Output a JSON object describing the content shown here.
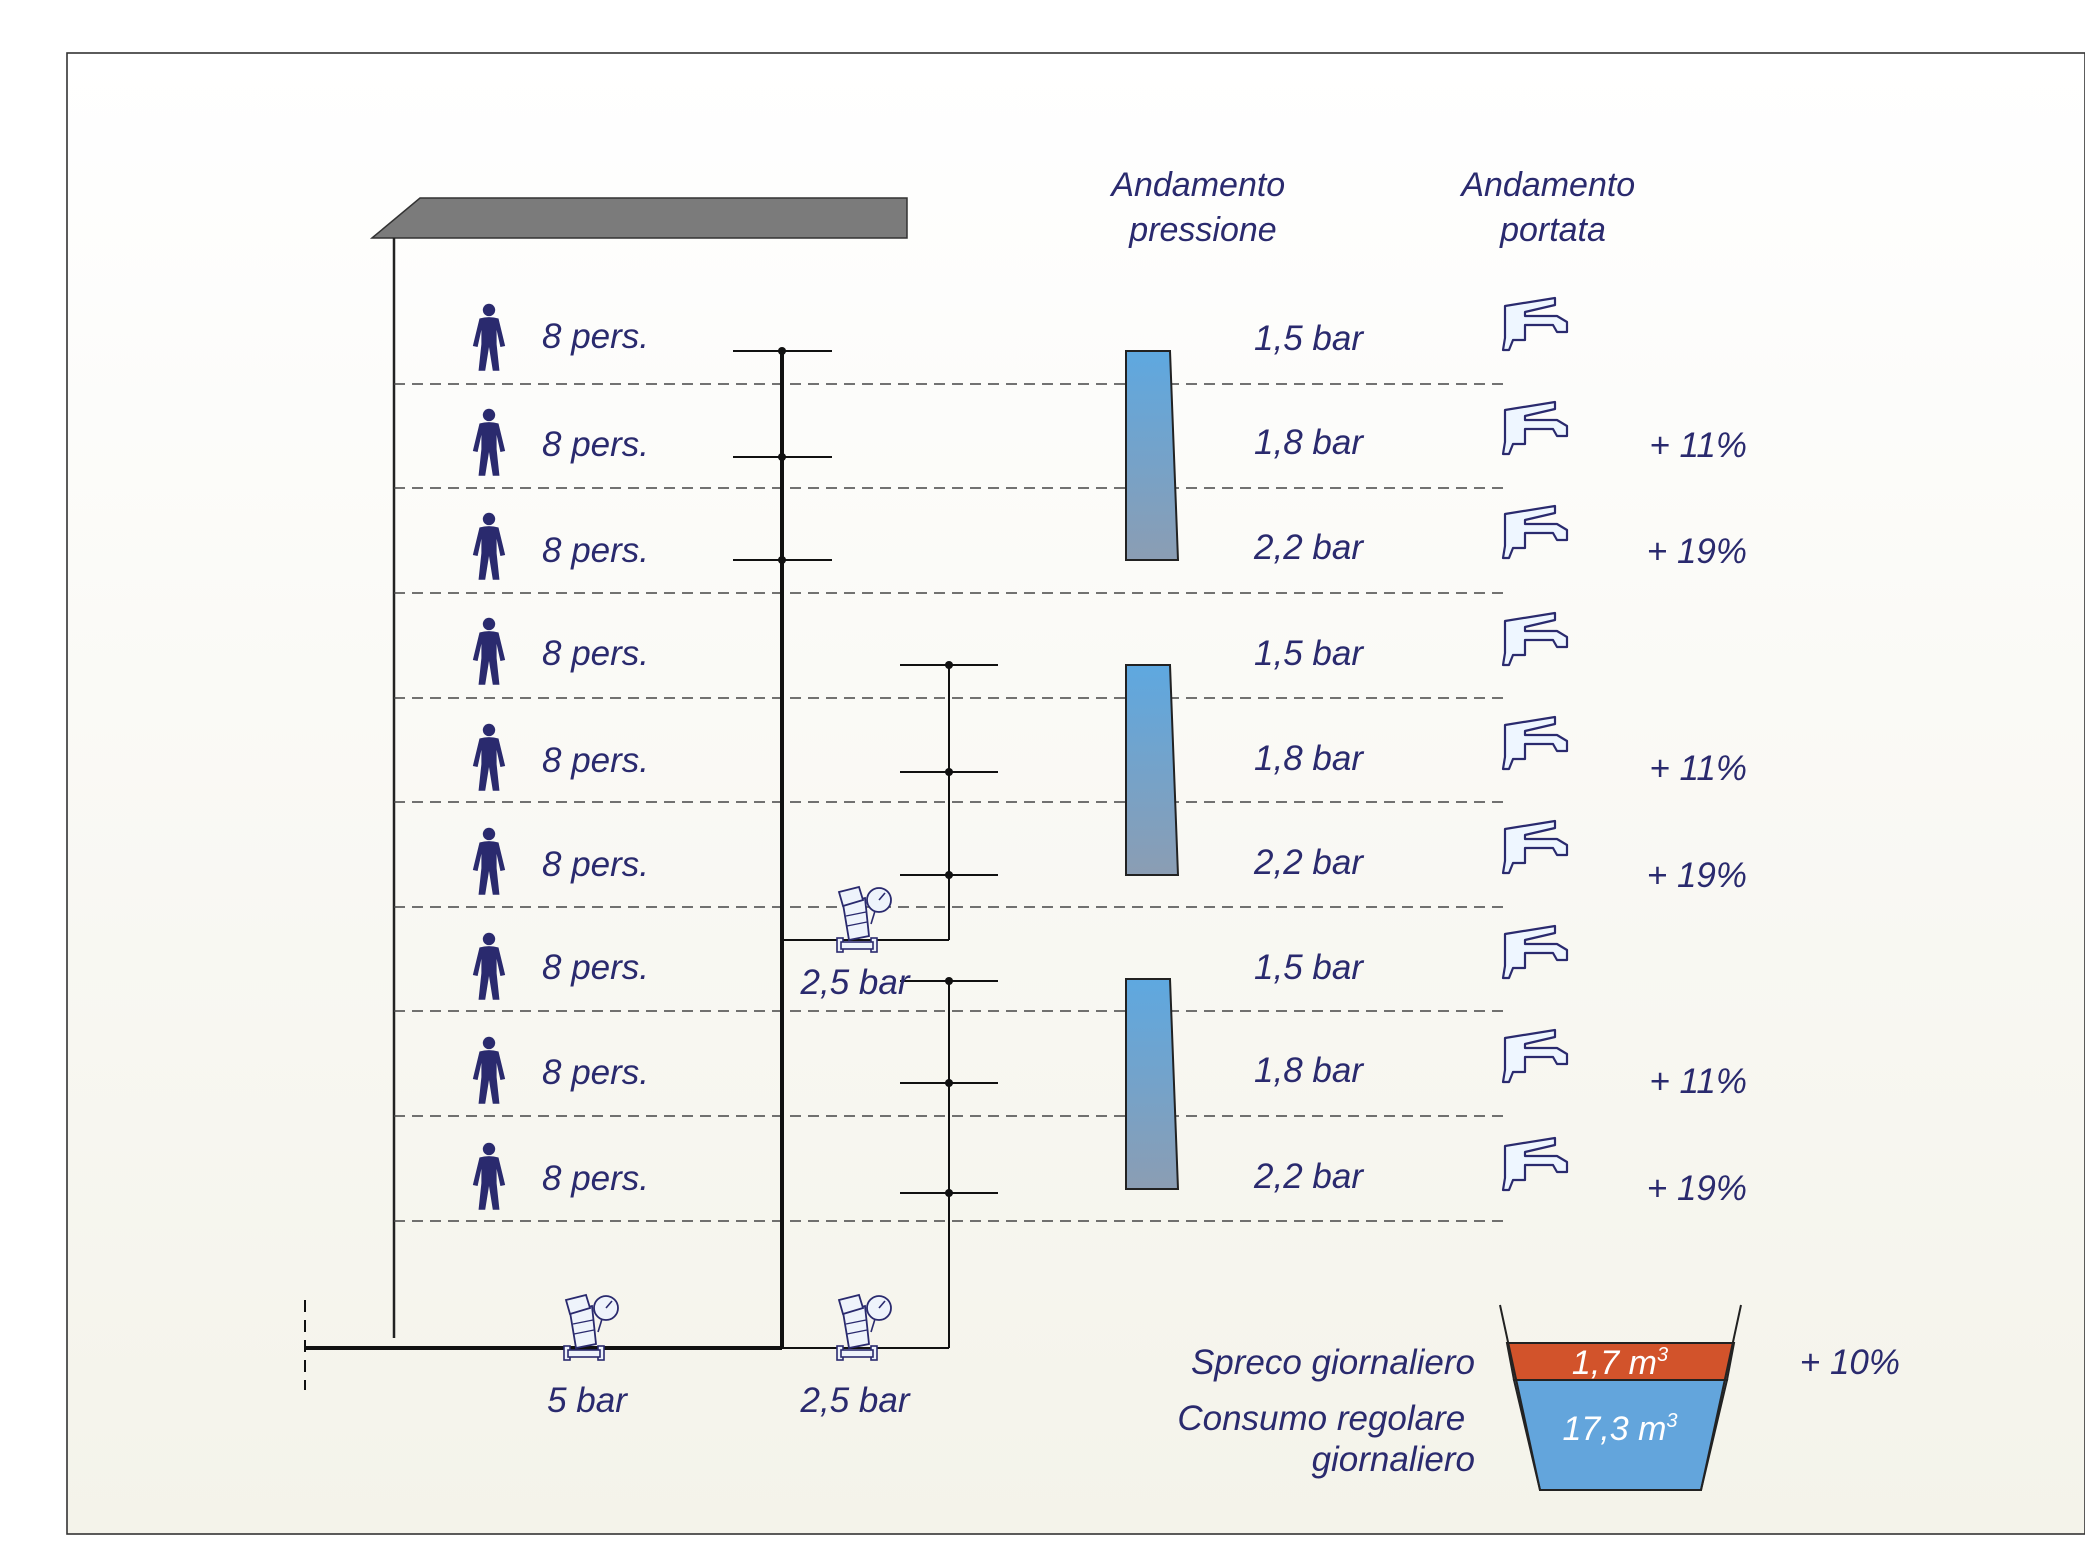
{
  "header": {
    "pressure_title": [
      "Andamento",
      "pressione"
    ],
    "flow_title": [
      "Andamento",
      "portata"
    ]
  },
  "floors": [
    {
      "people": "8 pers.",
      "pressure": "1,5 bar",
      "flow": ""
    },
    {
      "people": "8 pers.",
      "pressure": "1,8 bar",
      "flow": "+ 11%"
    },
    {
      "people": "8 pers.",
      "pressure": "2,2 bar",
      "flow": "+ 19%"
    },
    {
      "people": "8 pers.",
      "pressure": "1,5 bar",
      "flow": ""
    },
    {
      "people": "8 pers.",
      "pressure": "1,8 bar",
      "flow": "+ 11%"
    },
    {
      "people": "8 pers.",
      "pressure": "2,2 bar",
      "flow": "+ 19%"
    },
    {
      "people": "8 pers.",
      "pressure": "1,5 bar",
      "flow": ""
    },
    {
      "people": "8 pers.",
      "pressure": "1,8 bar",
      "flow": "+ 11%"
    },
    {
      "people": "8 pers.",
      "pressure": "2,2 bar",
      "flow": "+ 19%"
    }
  ],
  "valves": {
    "main": "5 bar",
    "lower_zone": "2,5 bar",
    "middle_zone": "2,5 bar"
  },
  "consumption": {
    "waste_label": "Spreco giornaliero",
    "waste_value": "1,7 m",
    "waste_percent": "+ 10%",
    "regular_label": [
      "Consumo regolare",
      "giornaliero"
    ],
    "regular_value": "17,3 m",
    "unit_exponent": "3"
  },
  "colors": {
    "text": "#2a2a6e",
    "person": "#2a2a6e",
    "roof": "#7b7b7b",
    "pressure_top": "#5ea8e0",
    "pressure_bottom": "#8b9db3",
    "waste": "#d2532b",
    "regular": "#63a5dc"
  },
  "icons": [
    "person-icon",
    "faucet-icon",
    "pressure-reducing-valve-icon"
  ]
}
